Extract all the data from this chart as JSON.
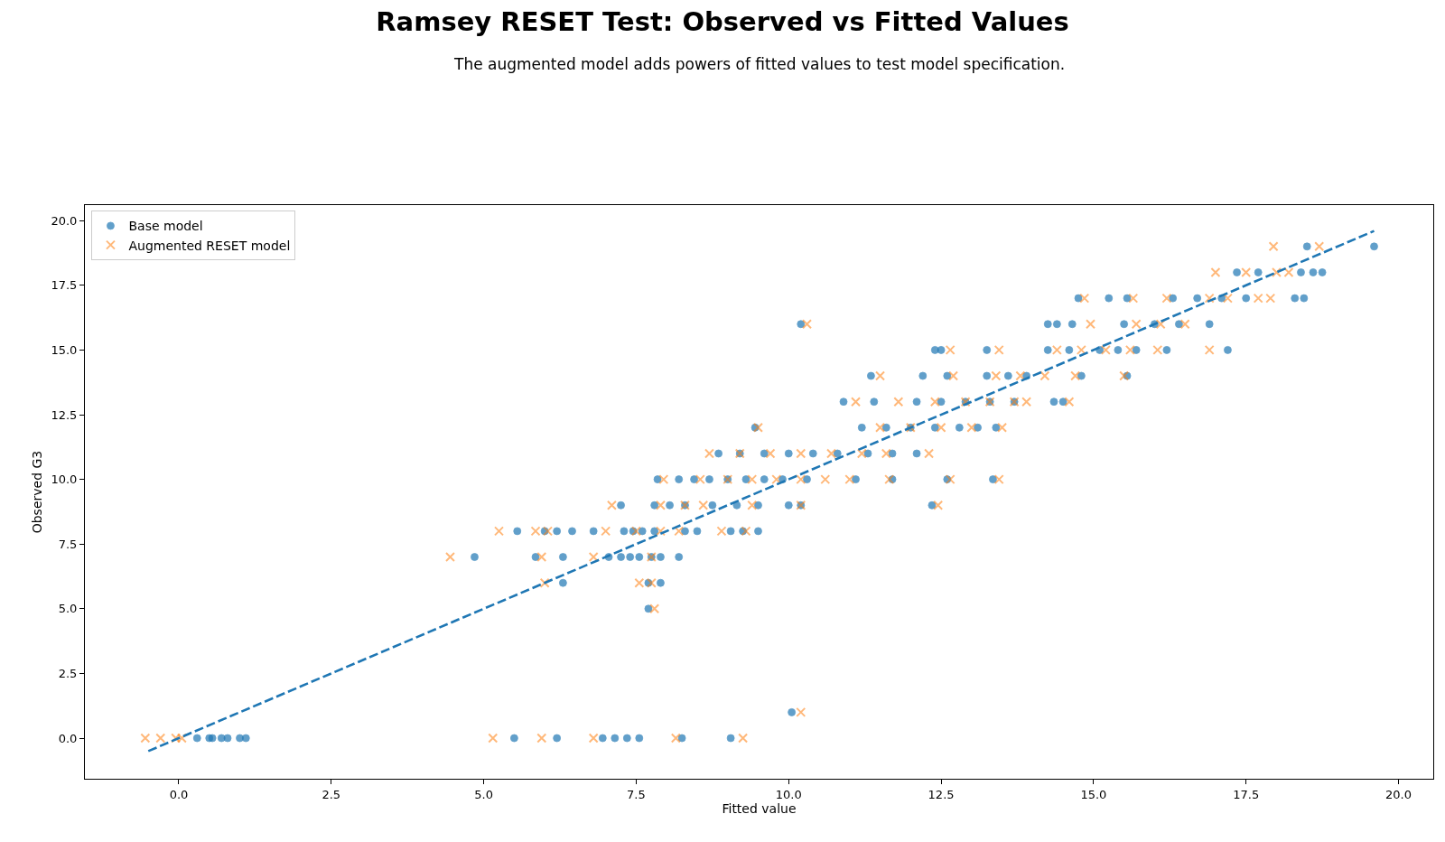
{
  "chart_data": {
    "type": "scatter",
    "title": "Ramsey RESET Test: Observed vs Fitted Values",
    "subtitle": "The augmented model adds powers of fitted values to test model specification.",
    "xlabel": "Fitted value",
    "ylabel": "Observed G3",
    "xlim": [
      -1.54,
      20.57
    ],
    "ylim": [
      -1.57,
      20.6
    ],
    "xticks": [
      {
        "value": 0,
        "label": "0.0"
      },
      {
        "value": 2.5,
        "label": "2.5"
      },
      {
        "value": 5,
        "label": "5.0"
      },
      {
        "value": 7.5,
        "label": "7.5"
      },
      {
        "value": 10,
        "label": "10.0"
      },
      {
        "value": 12.5,
        "label": "12.5"
      },
      {
        "value": 15,
        "label": "15.0"
      },
      {
        "value": 17.5,
        "label": "17.5"
      },
      {
        "value": 20,
        "label": "20.0"
      }
    ],
    "yticks": [
      {
        "value": 0,
        "label": "0.0"
      },
      {
        "value": 2.5,
        "label": "2.5"
      },
      {
        "value": 5,
        "label": "5.0"
      },
      {
        "value": 7.5,
        "label": "7.5"
      },
      {
        "value": 10,
        "label": "10.0"
      },
      {
        "value": 12.5,
        "label": "12.5"
      },
      {
        "value": 15,
        "label": "15.0"
      },
      {
        "value": 17.5,
        "label": "17.5"
      },
      {
        "value": 20,
        "label": "20.0"
      }
    ],
    "legend": "top left",
    "series": [
      {
        "name": "Base model",
        "color": "#1f77b4",
        "marker": "circle",
        "x": [
          0.3,
          0.5,
          0.55,
          0.7,
          0.8,
          1.0,
          1.1,
          5.5,
          6.2,
          6.95,
          7.15,
          7.35,
          7.55,
          8.25,
          9.05,
          10.05,
          7.7,
          7.7,
          7.9,
          6.3,
          4.85,
          5.85,
          6.3,
          7.05,
          7.25,
          7.4,
          7.55,
          7.75,
          7.9,
          8.2,
          5.55,
          6.0,
          6.2,
          6.45,
          6.8,
          7.3,
          7.45,
          7.6,
          7.8,
          8.3,
          8.5,
          9.05,
          9.25,
          9.5,
          7.25,
          7.8,
          8.05,
          8.3,
          8.75,
          9.15,
          9.5,
          10.0,
          10.2,
          12.35,
          7.85,
          8.2,
          8.45,
          8.7,
          9.0,
          9.3,
          9.6,
          9.9,
          10.3,
          11.1,
          11.7,
          12.6,
          13.35,
          8.85,
          9.2,
          9.6,
          10.0,
          10.4,
          10.8,
          11.3,
          11.7,
          12.1,
          9.45,
          11.2,
          11.6,
          12.0,
          12.4,
          12.8,
          13.1,
          13.4,
          10.9,
          11.4,
          12.1,
          12.5,
          12.9,
          13.3,
          13.7,
          14.35,
          14.5,
          11.35,
          12.2,
          12.6,
          13.25,
          13.6,
          13.9,
          14.8,
          15.55,
          12.4,
          12.5,
          13.25,
          14.25,
          14.6,
          15.1,
          15.4,
          15.7,
          16.2,
          17.2,
          10.2,
          14.25,
          14.4,
          14.65,
          15.5,
          16.0,
          16.4,
          16.9,
          14.75,
          15.25,
          15.55,
          16.3,
          16.7,
          17.1,
          17.5,
          18.3,
          18.45,
          17.35,
          17.7,
          18.4,
          18.6,
          18.75,
          18.5,
          19.6
        ],
        "values": [
          0,
          0,
          0,
          0,
          0,
          0,
          0,
          0,
          0,
          0,
          0,
          0,
          0,
          0,
          0,
          1,
          5,
          6,
          6,
          6,
          7,
          7,
          7,
          7,
          7,
          7,
          7,
          7,
          7,
          7,
          8,
          8,
          8,
          8,
          8,
          8,
          8,
          8,
          8,
          8,
          8,
          8,
          8,
          8,
          9,
          9,
          9,
          9,
          9,
          9,
          9,
          9,
          9,
          9,
          10,
          10,
          10,
          10,
          10,
          10,
          10,
          10,
          10,
          10,
          10,
          10,
          10,
          11,
          11,
          11,
          11,
          11,
          11,
          11,
          11,
          11,
          12,
          12,
          12,
          12,
          12,
          12,
          12,
          12,
          13,
          13,
          13,
          13,
          13,
          13,
          13,
          13,
          13,
          14,
          14,
          14,
          14,
          14,
          14,
          14,
          14,
          15,
          15,
          15,
          15,
          15,
          15,
          15,
          15,
          15,
          15,
          16,
          16,
          16,
          16,
          16,
          16,
          16,
          16,
          17,
          17,
          17,
          17,
          17,
          17,
          17,
          17,
          17,
          18,
          18,
          18,
          18,
          18,
          19,
          19
        ]
      },
      {
        "name": "Augmented RESET model",
        "color": "#ff7f0e",
        "marker": "cross",
        "x": [
          -0.55,
          -0.3,
          -0.05,
          0.05,
          5.15,
          5.95,
          6.8,
          8.15,
          9.25,
          10.2,
          7.8,
          6.0,
          7.55,
          7.75,
          4.45,
          5.95,
          6.8,
          7.75,
          5.25,
          5.85,
          6.05,
          7.0,
          7.5,
          7.9,
          8.2,
          8.9,
          9.3,
          7.1,
          7.9,
          8.3,
          8.6,
          9.4,
          10.2,
          12.45,
          7.95,
          8.55,
          9.0,
          9.4,
          9.8,
          10.2,
          10.6,
          11.0,
          11.65,
          12.65,
          13.45,
          8.7,
          9.2,
          9.7,
          10.2,
          10.7,
          11.2,
          11.6,
          12.3,
          9.5,
          11.5,
          12.0,
          12.5,
          13.0,
          13.5,
          11.1,
          11.8,
          12.4,
          12.9,
          13.3,
          13.7,
          13.9,
          14.6,
          11.5,
          12.7,
          13.4,
          13.8,
          14.2,
          14.7,
          15.5,
          12.65,
          13.45,
          14.4,
          14.8,
          15.2,
          15.6,
          16.05,
          16.9,
          10.3,
          14.95,
          15.7,
          16.1,
          16.5,
          14.85,
          15.65,
          16.2,
          16.9,
          17.2,
          17.7,
          17.9,
          17.0,
          17.5,
          18.0,
          18.2,
          17.95,
          18.7
        ],
        "values": [
          0,
          0,
          0,
          0,
          0,
          0,
          0,
          0,
          0,
          1,
          5,
          6,
          6,
          6,
          7,
          7,
          7,
          7,
          8,
          8,
          8,
          8,
          8,
          8,
          8,
          8,
          8,
          9,
          9,
          9,
          9,
          9,
          9,
          9,
          10,
          10,
          10,
          10,
          10,
          10,
          10,
          10,
          10,
          10,
          10,
          11,
          11,
          11,
          11,
          11,
          11,
          11,
          11,
          12,
          12,
          12,
          12,
          12,
          12,
          13,
          13,
          13,
          13,
          13,
          13,
          13,
          13,
          14,
          14,
          14,
          14,
          14,
          14,
          14,
          15,
          15,
          15,
          15,
          15,
          15,
          15,
          15,
          16,
          16,
          16,
          16,
          16,
          17,
          17,
          17,
          17,
          17,
          17,
          17,
          18,
          18,
          18,
          18,
          19,
          19
        ]
      },
      {
        "type": "line",
        "color": "#1f77b4",
        "line_style": "dashed",
        "marker": "none",
        "x": [
          -0.5,
          19.6
        ],
        "values": [
          -0.5,
          19.6
        ]
      }
    ]
  }
}
